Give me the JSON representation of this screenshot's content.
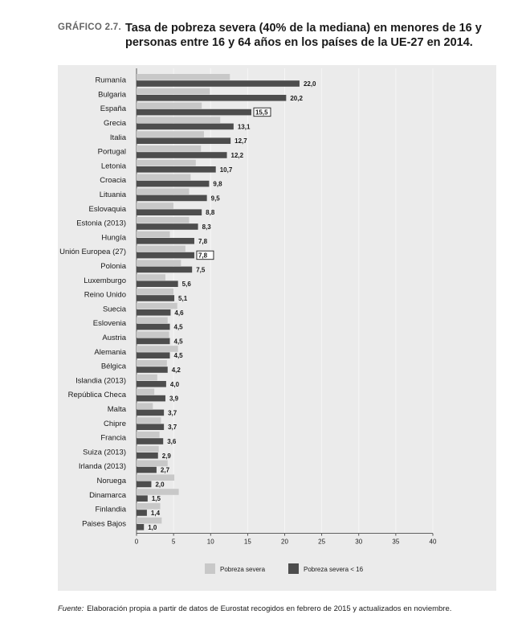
{
  "header": {
    "figure_label": "GRÁFICO 2.7.",
    "title": "Tasa de pobreza severa (40% de la mediana) en menores de 16 y personas entre 16 y 64 años en los países de la UE-27 en 2014."
  },
  "source": {
    "label": "Fuente:",
    "text": "Elaboración propia a partir de datos de Eurostat recogidos en febrero de 2015 y actualizados en noviembre."
  },
  "colors": {
    "light": "#c8c8c8",
    "dark": "#4d4d4d",
    "panel": "#ebebeb"
  },
  "chart_data": {
    "type": "bar",
    "orientation": "horizontal",
    "categories": [
      "Rumanía",
      "Bulgaria",
      "España",
      "Grecia",
      "Italia",
      "Portugal",
      "Letonia",
      "Croacia",
      "Lituania",
      "Eslovaquia",
      "Estonia (2013)",
      "Hungía",
      "Unión Europea (27)",
      "Polonia",
      "Luxemburgo",
      "Reino Unido",
      "Suecia",
      "Eslovenia",
      "Austria",
      "Alemania",
      "Bélgica",
      "Islandia (2013)",
      "República Checa",
      "Malta",
      "Chipre",
      "Francia",
      "Suiza (2013)",
      "Irlanda (2013)",
      "Noruega",
      "Dinamarca",
      "Finlandia",
      "Paises Bajos"
    ],
    "series": [
      {
        "name": "Pobreza severa",
        "values": [
          12.6,
          9.9,
          8.8,
          11.3,
          9.1,
          8.7,
          8.0,
          7.3,
          7.1,
          5.0,
          7.1,
          4.5,
          6.6,
          6.0,
          3.9,
          5.0,
          5.5,
          4.2,
          4.4,
          5.6,
          4.1,
          2.8,
          2.4,
          2.2,
          3.3,
          3.1,
          3.0,
          4.2,
          5.1,
          5.7,
          3.2,
          3.4
        ]
      },
      {
        "name": "Pobreza severa < 16",
        "values": [
          22.0,
          20.2,
          15.5,
          13.1,
          12.7,
          12.2,
          10.7,
          9.8,
          9.5,
          8.8,
          8.3,
          7.8,
          7.8,
          7.5,
          5.6,
          5.1,
          4.6,
          4.5,
          4.5,
          4.5,
          4.2,
          4.0,
          3.9,
          3.7,
          3.7,
          3.6,
          2.9,
          2.7,
          2.0,
          1.5,
          1.4,
          1.0
        ],
        "labels": [
          "22,0",
          "20,2",
          "15,5",
          "13,1",
          "12,7",
          "12,2",
          "10,7",
          "9,8",
          "9,5",
          "8,8",
          "8,3",
          "7,8",
          "7,8",
          "7,5",
          "5,6",
          "5,1",
          "4,6",
          "4,5",
          "4,5",
          "4,5",
          "4,2",
          "4,0",
          "3,9",
          "3,7",
          "3,7",
          "3,6",
          "2,9",
          "2,7",
          "2,0",
          "1,5",
          "1,4",
          "1,0"
        ],
        "boxed": [
          "España",
          "Unión Europea (27)"
        ]
      }
    ],
    "xticks": [
      0,
      5,
      10,
      15,
      20,
      25,
      30,
      35,
      40
    ],
    "xlim": [
      0,
      40
    ],
    "xlabel": "",
    "ylabel": "",
    "grid": true,
    "legend_position": "bottom"
  }
}
